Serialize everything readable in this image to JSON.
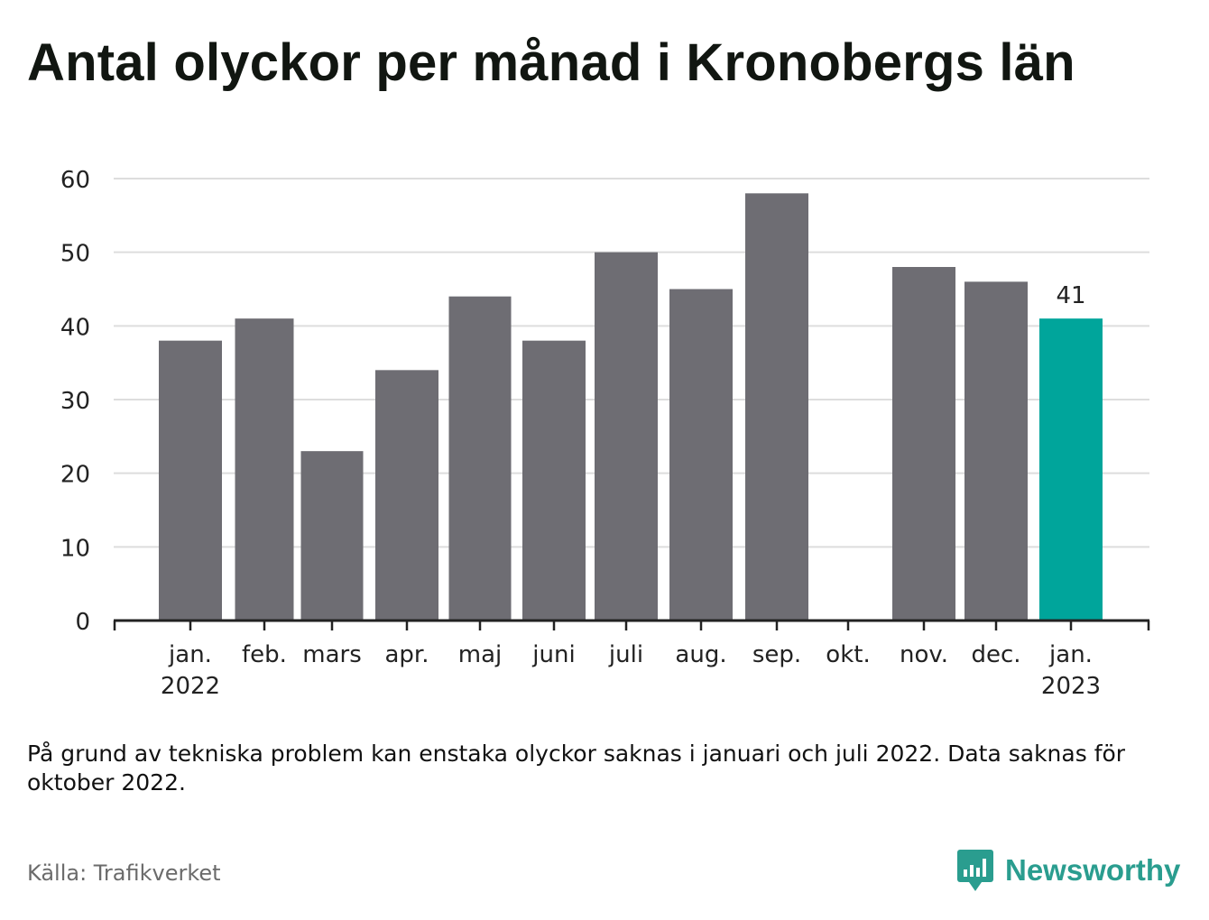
{
  "title": "Antal olyckor per månad i Kronobergs län",
  "note": "På grund av tekniska problem kan enstaka olyckor saknas i januari och juli 2022. Data saknas för oktober 2022.",
  "source": "Källa: Trafikverket",
  "brand": "Newsworthy",
  "colors": {
    "bar": "#6e6d73",
    "highlight": "#00a59b",
    "grid": "#dddddd",
    "axis": "#222222",
    "brand": "#2a9d8f"
  },
  "chart_data": {
    "type": "bar",
    "title": "Antal olyckor per månad i Kronobergs län",
    "categories": [
      "jan. 2022",
      "feb.",
      "mars",
      "apr.",
      "maj",
      "juni",
      "juli",
      "aug.",
      "sep.",
      "okt.",
      "nov.",
      "dec.",
      "jan. 2023"
    ],
    "tick_labels": [
      [
        "jan.",
        "2022"
      ],
      [
        "feb."
      ],
      [
        "mars"
      ],
      [
        "apr."
      ],
      [
        "maj"
      ],
      [
        "juni"
      ],
      [
        "juli"
      ],
      [
        "aug."
      ],
      [
        "sep."
      ],
      [
        "okt."
      ],
      [
        "nov."
      ],
      [
        "dec."
      ],
      [
        "jan.",
        "2023"
      ]
    ],
    "values": [
      38,
      41,
      23,
      34,
      44,
      38,
      50,
      45,
      58,
      null,
      48,
      46,
      41
    ],
    "highlight_index": 12,
    "data_labels": [
      {
        "index": 12,
        "text": "41"
      }
    ],
    "ylim": [
      0,
      60
    ],
    "yticks": [
      0,
      10,
      20,
      30,
      40,
      50,
      60
    ],
    "xlabel": "",
    "ylabel": "",
    "grid": true
  }
}
